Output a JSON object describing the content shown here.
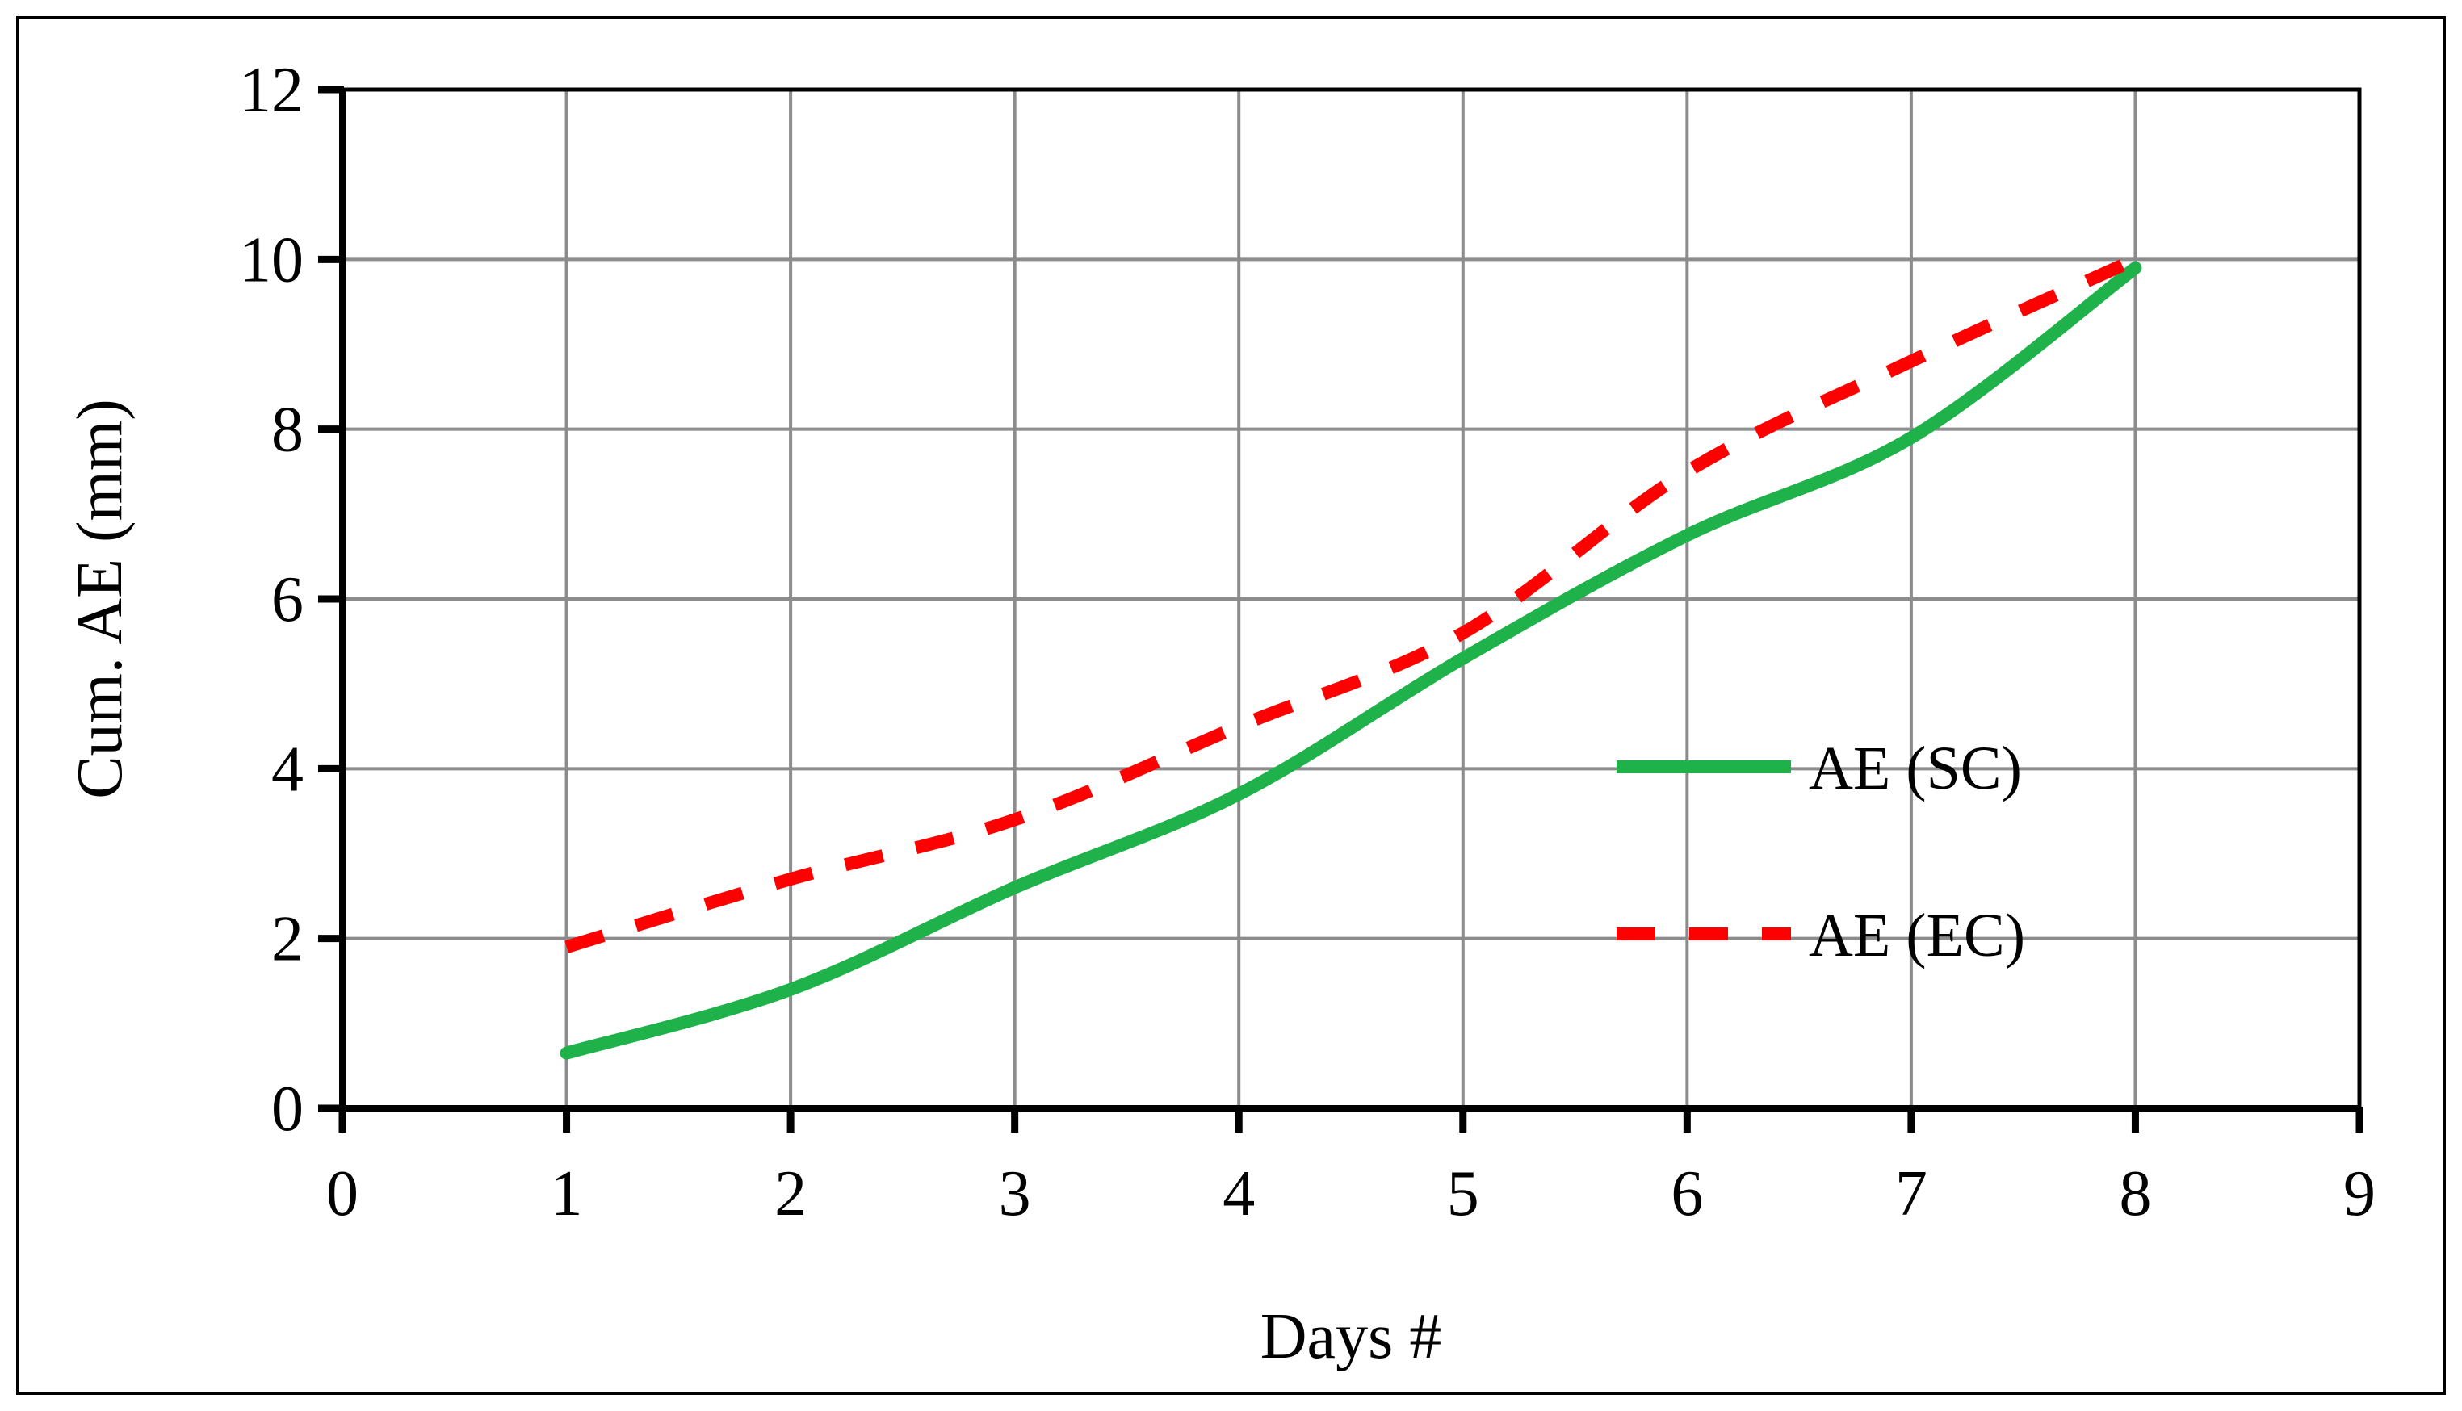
{
  "chart_data": {
    "type": "line",
    "xlabel": "Days #",
    "ylabel": "Cum. AE (mm)",
    "xlim": [
      0,
      9
    ],
    "ylim": [
      0,
      12
    ],
    "x_ticks": [
      "0",
      "1",
      "2",
      "3",
      "4",
      "5",
      "6",
      "7",
      "8",
      "9"
    ],
    "y_ticks": [
      "0",
      "2",
      "4",
      "6",
      "8",
      "10",
      "12"
    ],
    "grid": true,
    "legend_position": "right",
    "series": [
      {
        "name": "AE (SC)",
        "color": "#1fb24a",
        "style": "solid",
        "x": [
          1,
          2,
          3,
          4,
          5,
          6,
          7,
          8
        ],
        "y": [
          0.65,
          1.4,
          2.6,
          3.7,
          5.3,
          6.75,
          7.9,
          9.9
        ]
      },
      {
        "name": "AE (EC)",
        "color": "#ff0000",
        "style": "dashed",
        "x": [
          1,
          2,
          3,
          4,
          5,
          6,
          7,
          8
        ],
        "y": [
          1.9,
          2.7,
          3.4,
          4.5,
          5.6,
          7.5,
          8.8,
          10.0
        ]
      }
    ]
  }
}
